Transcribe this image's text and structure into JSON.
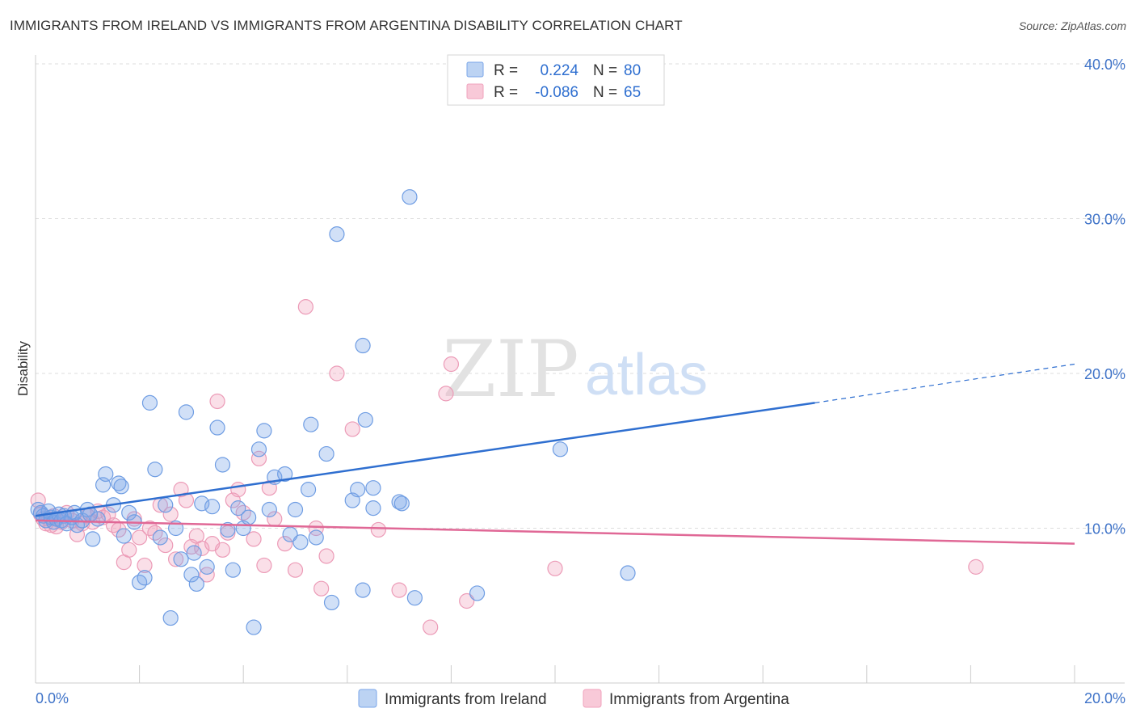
{
  "header": {
    "title": "IMMIGRANTS FROM IRELAND VS IMMIGRANTS FROM ARGENTINA DISABILITY CORRELATION CHART",
    "source": "Source: ZipAtlas.com"
  },
  "watermark": {
    "zip": "ZIP",
    "atlas": "atlas"
  },
  "legend_top": {
    "rows": [
      {
        "r_label": "R =",
        "r_value": "0.224",
        "n_label": "N =",
        "n_value": "80"
      },
      {
        "r_label": "R =",
        "r_value": "-0.086",
        "n_label": "N =",
        "n_value": "65"
      }
    ]
  },
  "chart_data": {
    "type": "scatter",
    "title": "IMMIGRANTS FROM IRELAND VS IMMIGRANTS FROM ARGENTINA DISABILITY CORRELATION CHART",
    "xlabel": "",
    "ylabel": "Disability",
    "xlim": [
      0,
      20
    ],
    "ylim": [
      0,
      40
    ],
    "x_tick_labels": [
      "0.0%",
      "20.0%"
    ],
    "y_tick_values": [
      10,
      20,
      30,
      40
    ],
    "y_tick_labels": [
      "10.0%",
      "20.0%",
      "30.0%",
      "40.0%"
    ],
    "grid": true,
    "legend_position": "bottom",
    "colors": {
      "ireland": "#7aa6e8",
      "argentina": "#f0a2bd",
      "ireland_line": "#2f6fd0",
      "argentina_line": "#e06896"
    },
    "series": [
      {
        "name": "Immigrants from Ireland",
        "color": "#7aa6e8",
        "r": 0.224,
        "n": 80,
        "trend": {
          "x0": 0.0,
          "y0": 10.8,
          "x1": 15.0,
          "y1": 18.1,
          "dashed_to_x": 20.0,
          "dashed_to_y": 20.6
        },
        "points": [
          [
            0.05,
            11.2
          ],
          [
            0.1,
            11.0
          ],
          [
            0.15,
            10.8
          ],
          [
            0.2,
            10.5
          ],
          [
            0.25,
            11.1
          ],
          [
            0.3,
            10.7
          ],
          [
            0.35,
            10.4
          ],
          [
            0.4,
            10.6
          ],
          [
            0.45,
            10.9
          ],
          [
            0.5,
            10.5
          ],
          [
            0.55,
            10.8
          ],
          [
            0.6,
            10.3
          ],
          [
            0.7,
            10.7
          ],
          [
            0.75,
            11.0
          ],
          [
            0.8,
            10.2
          ],
          [
            0.9,
            10.5
          ],
          [
            1.0,
            11.2
          ],
          [
            1.05,
            10.9
          ],
          [
            1.1,
            9.3
          ],
          [
            1.2,
            10.6
          ],
          [
            1.3,
            12.8
          ],
          [
            1.35,
            13.5
          ],
          [
            1.5,
            11.5
          ],
          [
            1.6,
            12.9
          ],
          [
            1.65,
            12.7
          ],
          [
            1.7,
            9.5
          ],
          [
            1.8,
            11.0
          ],
          [
            1.9,
            10.4
          ],
          [
            2.0,
            6.5
          ],
          [
            2.1,
            6.8
          ],
          [
            2.2,
            18.1
          ],
          [
            2.3,
            13.8
          ],
          [
            2.4,
            9.4
          ],
          [
            2.5,
            11.5
          ],
          [
            2.6,
            4.2
          ],
          [
            2.7,
            10.0
          ],
          [
            2.8,
            8.0
          ],
          [
            2.9,
            17.5
          ],
          [
            3.0,
            7.0
          ],
          [
            3.05,
            8.4
          ],
          [
            3.1,
            6.4
          ],
          [
            3.2,
            11.6
          ],
          [
            3.3,
            7.5
          ],
          [
            3.4,
            11.4
          ],
          [
            3.5,
            16.5
          ],
          [
            3.6,
            14.1
          ],
          [
            3.7,
            9.9
          ],
          [
            3.8,
            7.3
          ],
          [
            3.9,
            11.3
          ],
          [
            4.0,
            10.0
          ],
          [
            4.1,
            10.7
          ],
          [
            4.2,
            3.6
          ],
          [
            4.3,
            15.1
          ],
          [
            4.4,
            16.3
          ],
          [
            4.5,
            11.2
          ],
          [
            4.6,
            13.3
          ],
          [
            4.8,
            13.5
          ],
          [
            4.9,
            9.6
          ],
          [
            5.0,
            11.2
          ],
          [
            5.1,
            9.1
          ],
          [
            5.25,
            12.5
          ],
          [
            5.3,
            16.7
          ],
          [
            5.4,
            9.4
          ],
          [
            5.6,
            14.8
          ],
          [
            5.7,
            5.2
          ],
          [
            5.8,
            29.0
          ],
          [
            6.1,
            11.8
          ],
          [
            6.2,
            12.5
          ],
          [
            6.3,
            21.8
          ],
          [
            6.3,
            6.0
          ],
          [
            6.35,
            17.0
          ],
          [
            6.5,
            12.6
          ],
          [
            6.5,
            11.3
          ],
          [
            7.0,
            11.7
          ],
          [
            7.05,
            11.6
          ],
          [
            7.2,
            31.4
          ],
          [
            7.3,
            5.5
          ],
          [
            8.5,
            5.8
          ],
          [
            10.1,
            15.1
          ],
          [
            11.4,
            7.1
          ]
        ]
      },
      {
        "name": "Immigrants from Argentina",
        "color": "#f0a2bd",
        "r": -0.086,
        "n": 65,
        "trend": {
          "x0": 0.0,
          "y0": 10.5,
          "x1": 20.0,
          "y1": 9.0
        },
        "points": [
          [
            0.05,
            11.8
          ],
          [
            0.1,
            10.9
          ],
          [
            0.15,
            10.6
          ],
          [
            0.2,
            10.3
          ],
          [
            0.25,
            10.6
          ],
          [
            0.3,
            10.2
          ],
          [
            0.35,
            10.8
          ],
          [
            0.4,
            10.1
          ],
          [
            0.5,
            10.4
          ],
          [
            0.6,
            11.0
          ],
          [
            0.7,
            10.5
          ],
          [
            0.8,
            9.6
          ],
          [
            0.9,
            10.3
          ],
          [
            1.0,
            10.8
          ],
          [
            1.1,
            10.4
          ],
          [
            1.2,
            11.1
          ],
          [
            1.3,
            10.7
          ],
          [
            1.4,
            10.9
          ],
          [
            1.5,
            10.2
          ],
          [
            1.6,
            9.9
          ],
          [
            1.7,
            7.8
          ],
          [
            1.8,
            8.6
          ],
          [
            1.9,
            10.6
          ],
          [
            2.0,
            9.4
          ],
          [
            2.1,
            7.6
          ],
          [
            2.2,
            10.0
          ],
          [
            2.3,
            9.7
          ],
          [
            2.4,
            11.5
          ],
          [
            2.5,
            8.9
          ],
          [
            2.6,
            10.9
          ],
          [
            2.7,
            8.0
          ],
          [
            2.8,
            12.5
          ],
          [
            2.9,
            11.8
          ],
          [
            3.0,
            8.8
          ],
          [
            3.1,
            9.5
          ],
          [
            3.2,
            8.7
          ],
          [
            3.3,
            7.0
          ],
          [
            3.4,
            9.0
          ],
          [
            3.5,
            18.2
          ],
          [
            3.6,
            8.6
          ],
          [
            3.7,
            9.7
          ],
          [
            3.8,
            11.8
          ],
          [
            3.9,
            12.5
          ],
          [
            4.0,
            11.0
          ],
          [
            4.2,
            9.3
          ],
          [
            4.3,
            14.5
          ],
          [
            4.4,
            7.6
          ],
          [
            4.5,
            12.6
          ],
          [
            4.6,
            10.6
          ],
          [
            4.8,
            9.0
          ],
          [
            5.0,
            7.3
          ],
          [
            5.2,
            24.3
          ],
          [
            5.4,
            10.0
          ],
          [
            5.5,
            6.1
          ],
          [
            5.6,
            8.2
          ],
          [
            5.8,
            20.0
          ],
          [
            6.1,
            16.4
          ],
          [
            6.6,
            9.9
          ],
          [
            7.0,
            6.0
          ],
          [
            7.6,
            3.6
          ],
          [
            7.9,
            18.7
          ],
          [
            8.0,
            20.6
          ],
          [
            8.3,
            5.3
          ],
          [
            10.0,
            7.4
          ],
          [
            18.1,
            7.5
          ]
        ]
      }
    ]
  },
  "legend_bottom": {
    "items": [
      {
        "label": "Immigrants from Ireland"
      },
      {
        "label": "Immigrants from Argentina"
      }
    ]
  }
}
